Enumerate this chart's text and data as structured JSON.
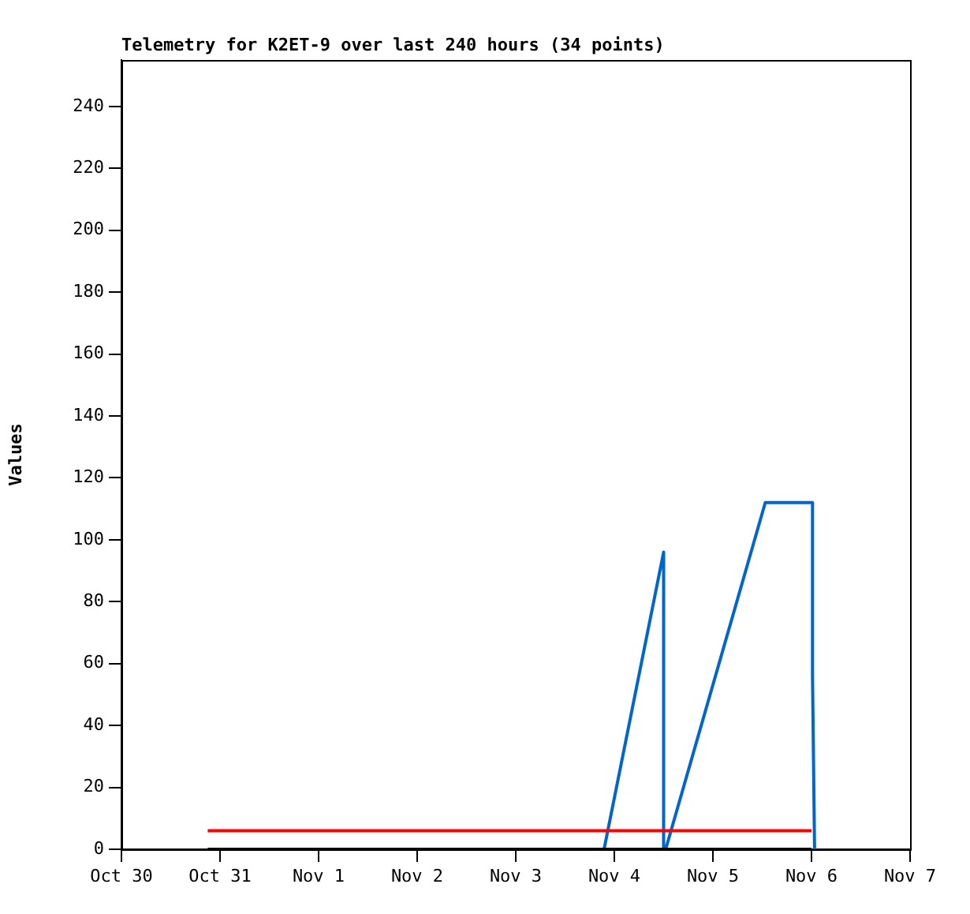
{
  "chart_data": {
    "type": "line",
    "title": "Telemetry for K2ET-9 over last 240 hours (34 points)",
    "ylabel": "Values",
    "xlim": [
      "--10-30",
      "--11-07"
    ],
    "xticks": [
      {
        "value": "--10-30",
        "label": "Oct 30"
      },
      {
        "value": "--10-31",
        "label": "Oct 31"
      },
      {
        "value": "--11-01",
        "label": "Nov 1"
      },
      {
        "value": "--11-02",
        "label": "Nov 2"
      },
      {
        "value": "--11-03",
        "label": "Nov 3"
      },
      {
        "value": "--11-04",
        "label": "Nov 4"
      },
      {
        "value": "--11-05",
        "label": "Nov 5"
      },
      {
        "value": "--11-06",
        "label": "Nov 6"
      },
      {
        "value": "--11-07",
        "label": "Nov 7"
      }
    ],
    "ylim": [
      0,
      255
    ],
    "yticks": [
      0,
      20,
      40,
      60,
      80,
      100,
      120,
      140,
      160,
      180,
      200,
      220,
      240
    ],
    "grid": false,
    "legend": false,
    "marker": "none",
    "line_style": "solid",
    "series": [
      {
        "color": "#000000",
        "x": [
          "--10-30T21:00",
          "--11-06T00:00"
        ],
        "values": [
          0,
          0
        ]
      },
      {
        "color": "#ff0000",
        "x": [
          "--10-30T21:00",
          "--11-06T00:00"
        ],
        "values": [
          6,
          6
        ]
      },
      {
        "color": "#0066cc",
        "x": [
          "--11-03T21:30",
          "--11-04T12:00",
          "--11-04T12:00",
          "--11-04T12:30",
          "--11-05T12:45",
          "--11-06T00:15",
          "--11-06T00:15",
          "--11-06T00:45"
        ],
        "values": [
          0,
          96,
          0,
          0,
          112,
          112,
          56,
          0
        ]
      }
    ]
  }
}
